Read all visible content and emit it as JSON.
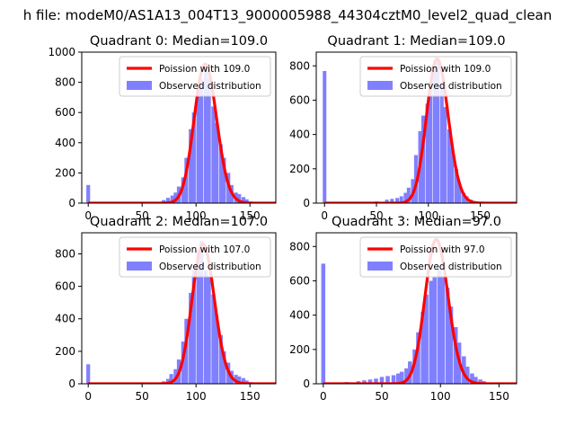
{
  "figure": {
    "suptitle": "h file: modeM0/AS1A13_004T13_9000005988_44304cztM0_level2_quad_clean"
  },
  "colors": {
    "histogram": "#8080ff",
    "poisson": "#ff0000",
    "axes": "#000000",
    "background": "#ffffff"
  },
  "chart_data": [
    {
      "type": "bar",
      "title": "Quadrant 0: Median=109.0",
      "xlim": [
        -6,
        174
      ],
      "ylim": [
        0,
        1000
      ],
      "xticks": [
        0,
        50,
        100,
        150
      ],
      "yticks": [
        0,
        200,
        400,
        600,
        800,
        1000
      ],
      "poisson_mean": 109,
      "poisson_peak": 920,
      "legend": {
        "placement": "top-right",
        "entries": [
          "Poission with 109.0",
          "Observed distribution"
        ]
      },
      "series": [
        {
          "name": "Observed distribution",
          "kind": "histogram",
          "bin_width": 3.5,
          "x": [
            0,
            45,
            60,
            70,
            74,
            78,
            81,
            84,
            88,
            91,
            95,
            98,
            102,
            105,
            109,
            112,
            116,
            119,
            123,
            126,
            130,
            133,
            137,
            140,
            144,
            147,
            151,
            155,
            160
          ],
          "values": [
            120,
            5,
            8,
            20,
            35,
            50,
            70,
            110,
            170,
            300,
            490,
            600,
            750,
            820,
            900,
            830,
            640,
            530,
            390,
            300,
            200,
            120,
            70,
            60,
            40,
            25,
            10,
            5,
            2
          ]
        },
        {
          "name": "Poission with 109.0",
          "kind": "line"
        }
      ]
    },
    {
      "type": "bar",
      "title": "Quadrant 1: Median=109.0",
      "xlim": [
        -8,
        185
      ],
      "ylim": [
        0,
        880
      ],
      "xticks": [
        0,
        50,
        100,
        150
      ],
      "yticks": [
        0,
        200,
        400,
        600,
        800
      ],
      "poisson_mean": 109,
      "poisson_peak": 840,
      "legend": {
        "placement": "top-right",
        "entries": [
          "Poission with 109.0",
          "Observed distribution"
        ]
      },
      "series": [
        {
          "name": "Observed distribution",
          "kind": "histogram",
          "bin_width": 3.5,
          "x": [
            0,
            30,
            50,
            60,
            65,
            70,
            74,
            78,
            81,
            85,
            88,
            92,
            95,
            99,
            102,
            106,
            109,
            113,
            116,
            120,
            123,
            127,
            130,
            134,
            137,
            141,
            145,
            150,
            160
          ],
          "values": [
            770,
            5,
            10,
            20,
            25,
            30,
            40,
            60,
            90,
            140,
            280,
            420,
            510,
            580,
            700,
            800,
            840,
            700,
            560,
            430,
            320,
            200,
            110,
            60,
            40,
            20,
            10,
            5,
            2
          ]
        },
        {
          "name": "Poission with 109.0",
          "kind": "line"
        }
      ]
    },
    {
      "type": "bar",
      "title": "Quadrant 2: Median=107.0",
      "xlim": [
        -6,
        174
      ],
      "ylim": [
        0,
        930
      ],
      "xticks": [
        0,
        50,
        100,
        150
      ],
      "yticks": [
        0,
        200,
        400,
        600,
        800
      ],
      "poisson_mean": 107,
      "poisson_peak": 860,
      "legend": {
        "placement": "top-right",
        "entries": [
          "Poission with 107.0",
          "Observed distribution"
        ]
      },
      "series": [
        {
          "name": "Observed distribution",
          "kind": "histogram",
          "bin_width": 3.5,
          "x": [
            0,
            45,
            60,
            70,
            74,
            77,
            81,
            84,
            88,
            91,
            95,
            98,
            102,
            105,
            109,
            112,
            116,
            119,
            123,
            126,
            130,
            133,
            137,
            140,
            144,
            147,
            151,
            155
          ],
          "values": [
            120,
            5,
            8,
            15,
            30,
            60,
            90,
            150,
            260,
            400,
            560,
            700,
            820,
            880,
            700,
            660,
            550,
            420,
            300,
            200,
            130,
            80,
            55,
            45,
            35,
            20,
            10,
            5
          ]
        },
        {
          "name": "Poission with 107.0",
          "kind": "line"
        }
      ]
    },
    {
      "type": "bar",
      "title": "Quadrant 3: Median=97.0",
      "xlim": [
        -6,
        165
      ],
      "ylim": [
        0,
        880
      ],
      "xticks": [
        0,
        50,
        100,
        150
      ],
      "yticks": [
        0,
        200,
        400,
        600,
        800
      ],
      "poisson_mean": 97,
      "poisson_peak": 840,
      "legend": {
        "placement": "top-right",
        "entries": [
          "Poission with 97.0",
          "Observed distribution"
        ]
      },
      "series": [
        {
          "name": "Observed distribution",
          "kind": "histogram",
          "bin_width": 3.5,
          "x": [
            0,
            10,
            20,
            30,
            35,
            40,
            45,
            50,
            55,
            60,
            64,
            67,
            71,
            74,
            78,
            81,
            85,
            88,
            92,
            95,
            99,
            102,
            106,
            109,
            113,
            116,
            120,
            123,
            127,
            130,
            134,
            137,
            141,
            145
          ],
          "values": [
            700,
            5,
            10,
            15,
            20,
            25,
            30,
            40,
            45,
            50,
            60,
            70,
            90,
            130,
            200,
            300,
            420,
            520,
            600,
            620,
            690,
            630,
            560,
            450,
            330,
            240,
            160,
            100,
            60,
            40,
            25,
            15,
            8,
            4
          ]
        },
        {
          "name": "Poission with 97.0",
          "kind": "line"
        }
      ]
    }
  ]
}
